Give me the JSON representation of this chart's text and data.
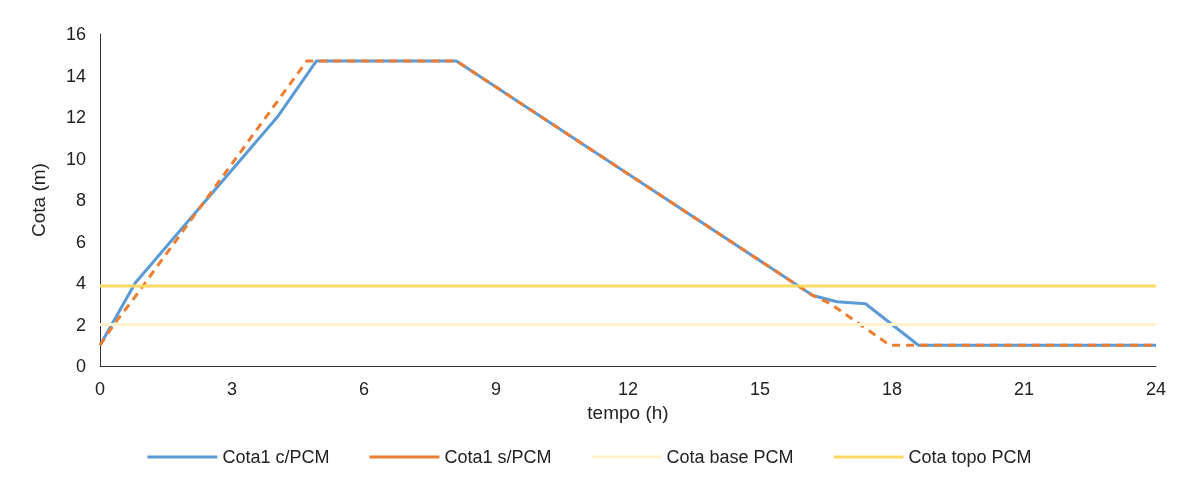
{
  "chart_data": {
    "type": "line",
    "xlabel": "tempo (h)",
    "ylabel": "Cota (m)",
    "xlim": [
      0,
      24
    ],
    "xticks": [
      0,
      3,
      6,
      9,
      12,
      15,
      18,
      21,
      24
    ],
    "ylim": [
      0,
      16
    ],
    "yticks": [
      0,
      2,
      4,
      6,
      8,
      10,
      12,
      14,
      16
    ],
    "grid": false,
    "legend": "bottom",
    "marker": "none",
    "series": [
      {
        "name": "Cota1 c/PCM",
        "color": "#5b9bd5",
        "line_style": "solid",
        "x": [
          0,
          0.8,
          4.05,
          4.92,
          8.1,
          16.2,
          16.75,
          17.4,
          18.6,
          24
        ],
        "values": [
          1.0,
          4.0,
          12.05,
          14.7,
          14.7,
          3.4,
          3.1,
          3.0,
          1.0,
          1.0
        ]
      },
      {
        "name": "Cota1 s/PCM",
        "color": "#ed7d31",
        "line_style": "dashed",
        "x": [
          0,
          0.35,
          0.75,
          4.7,
          8.1,
          16.2,
          16.6,
          17.95,
          24
        ],
        "values": [
          1.0,
          2.1,
          3.2,
          14.7,
          14.7,
          3.4,
          3.0,
          1.0,
          1.0
        ]
      },
      {
        "name": "Cota base PCM",
        "color": "#fff2cc",
        "line_style": "solid",
        "x": [
          0,
          24
        ],
        "values": [
          2.0,
          2.0
        ]
      },
      {
        "name": "Cota topo PCM",
        "color": "#ffd966",
        "line_style": "solid",
        "x": [
          0,
          24
        ],
        "values": [
          3.85,
          3.85
        ]
      }
    ]
  }
}
